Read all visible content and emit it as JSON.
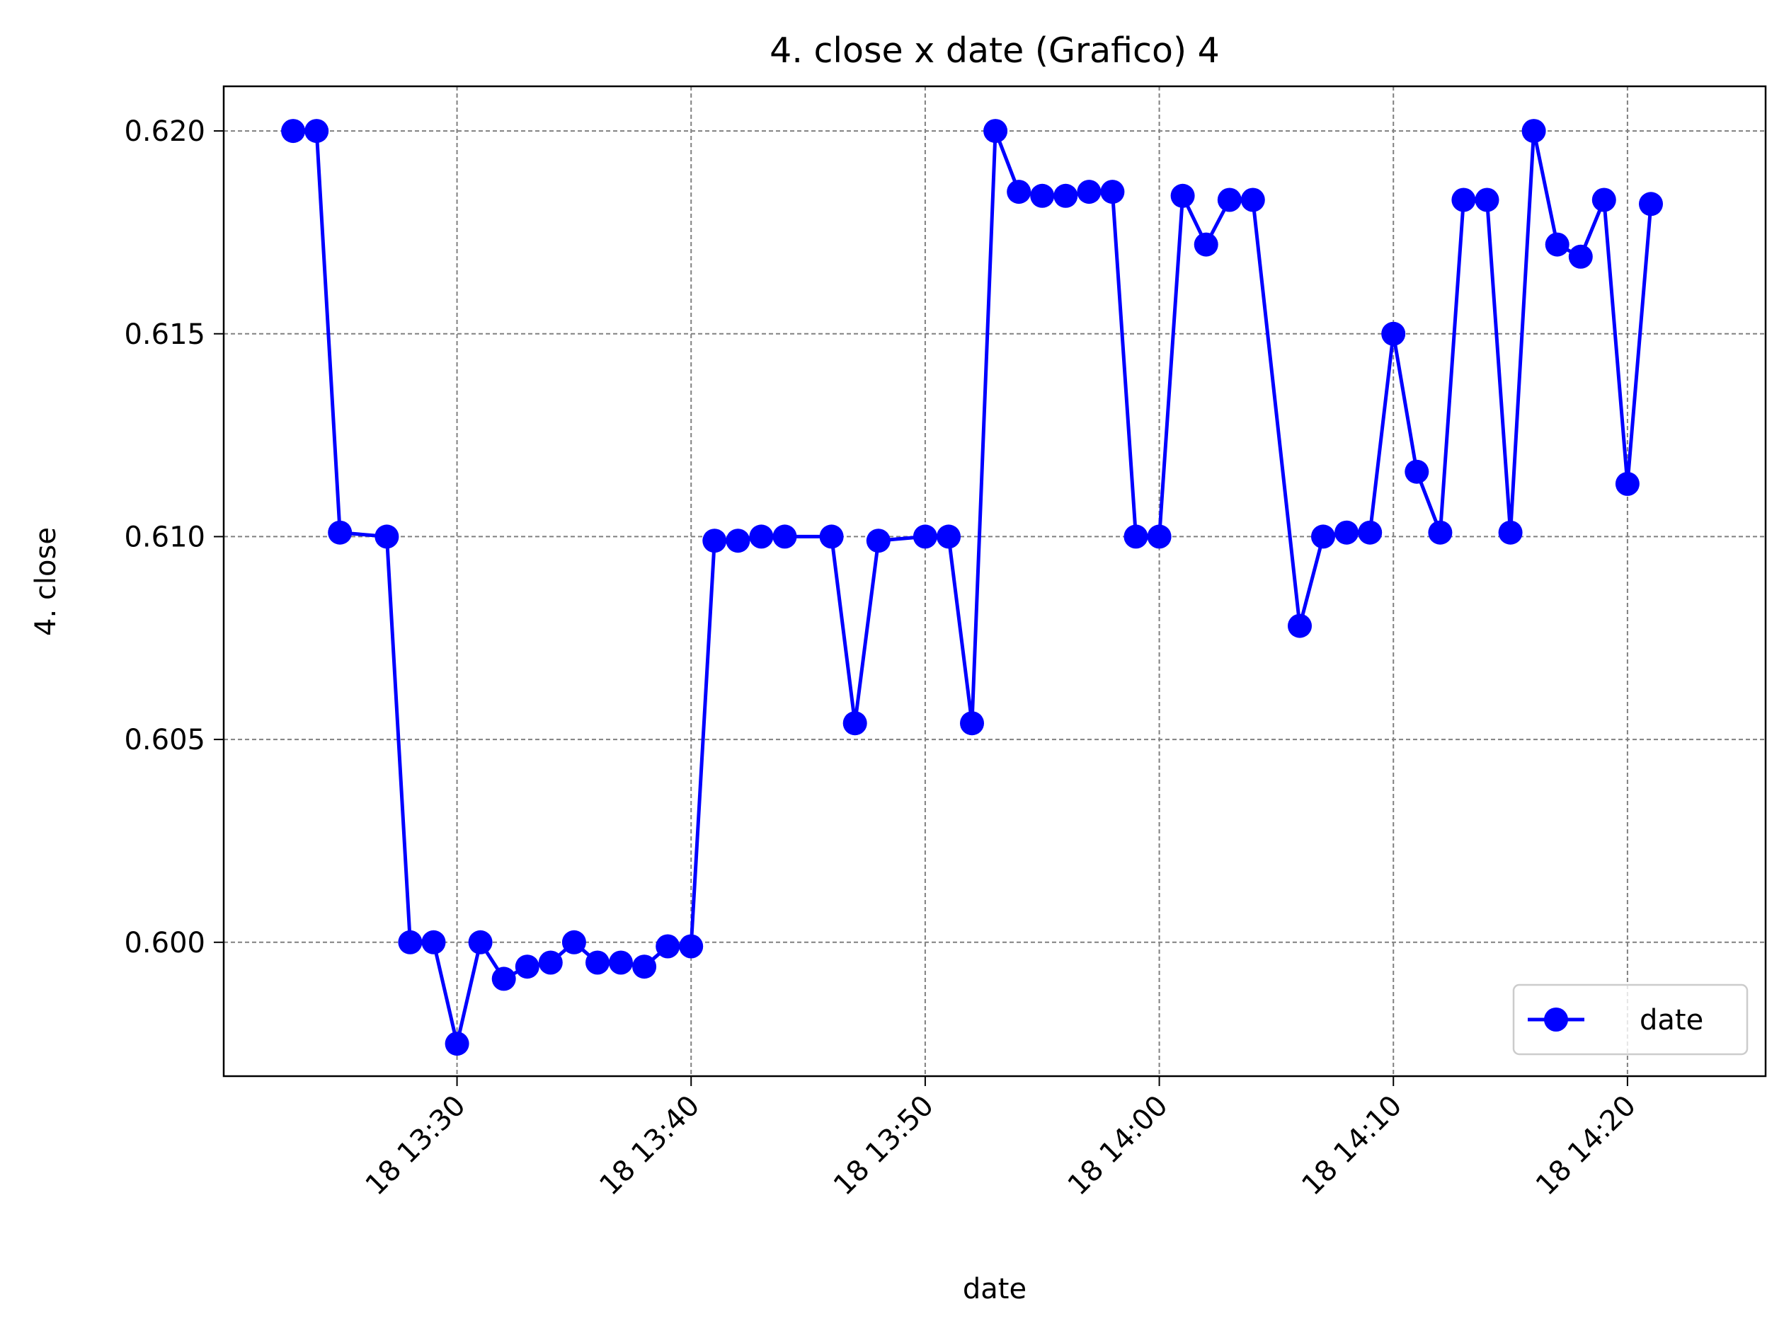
{
  "chart_data": {
    "type": "line",
    "title": "4. close x date (Grafico) 4",
    "xlabel": "date",
    "ylabel": "4. close",
    "x_tick_labels": [
      "18 13:30",
      "18 13:40",
      "18 13:50",
      "18 14:00",
      "18 14:10",
      "18 14:20"
    ],
    "y_tick_labels": [
      "0.600",
      "0.605",
      "0.610",
      "0.615",
      "0.620"
    ],
    "y_ticks": [
      0.6,
      0.605,
      0.61,
      0.615,
      0.62
    ],
    "ylim": [
      0.5967,
      0.6211
    ],
    "xlim": [
      "13:20:02",
      "14:25:54"
    ],
    "x_ticks": [
      "13:30",
      "13:40",
      "13:50",
      "14:00",
      "14:10",
      "14:20"
    ],
    "grid": true,
    "legend_position": "lower right",
    "series": [
      {
        "name": "date",
        "color": "#0000ff",
        "marker": "circle",
        "x": [
          "13:23",
          "13:24",
          "13:25",
          "13:27",
          "13:28",
          "13:29",
          "13:30",
          "13:31",
          "13:32",
          "13:33",
          "13:34",
          "13:35",
          "13:36",
          "13:37",
          "13:38",
          "13:39",
          "13:40",
          "13:41",
          "13:42",
          "13:43",
          "13:44",
          "13:46",
          "13:47",
          "13:48",
          "13:50",
          "13:51",
          "13:52",
          "13:53",
          "13:54",
          "13:55",
          "13:56",
          "13:57",
          "13:58",
          "13:59",
          "14:00",
          "14:01",
          "14:02",
          "14:03",
          "14:04",
          "14:06",
          "14:07",
          "14:08",
          "14:09",
          "14:10",
          "14:11",
          "14:12",
          "14:13",
          "14:14",
          "14:15",
          "14:16",
          "14:17",
          "14:18",
          "14:19",
          "14:20",
          "14:21"
        ],
        "values": [
          0.62,
          0.62,
          0.6101,
          0.61,
          0.6,
          0.6,
          0.5975,
          0.6,
          0.5991,
          0.5994,
          0.5995,
          0.6,
          0.5995,
          0.5995,
          0.5994,
          0.5999,
          0.5999,
          0.6099,
          0.6099,
          0.61,
          0.61,
          0.61,
          0.6054,
          0.6099,
          0.61,
          0.61,
          0.6054,
          0.62,
          0.6185,
          0.6184,
          0.6184,
          0.6185,
          0.6185,
          0.61,
          0.61,
          0.6184,
          0.6172,
          0.6183,
          0.6183,
          0.6078,
          0.61,
          0.6101,
          0.6101,
          0.615,
          0.6116,
          0.6101,
          0.6183,
          0.6183,
          0.6101,
          0.62,
          0.6172,
          0.6169,
          0.6183,
          0.6113,
          0.6182
        ]
      }
    ]
  }
}
